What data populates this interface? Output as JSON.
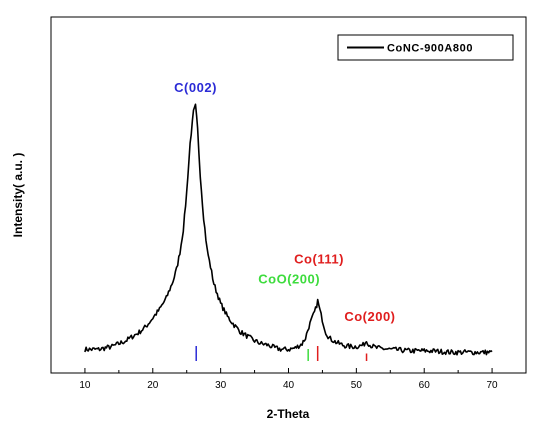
{
  "chart_data": {
    "type": "line",
    "title": "",
    "xlabel": "2-Theta",
    "ylabel": "Intensity( a.u. )",
    "xlim": [
      5,
      75
    ],
    "ylim": [
      0,
      1
    ],
    "y_ticks_shown": false,
    "x_ticks": [
      10,
      20,
      30,
      40,
      50,
      60,
      70
    ],
    "grid": false,
    "legend": {
      "position": "top-right",
      "entries": [
        {
          "label": "CoNC-900A800",
          "color": "#000000"
        }
      ]
    },
    "series": [
      {
        "name": "CoNC-900A800",
        "color": "#000000",
        "x": [
          10,
          12,
          14,
          16,
          18,
          19,
          20,
          21,
          22,
          23,
          23.5,
          24,
          24.5,
          25,
          25.5,
          26,
          26.3,
          26.6,
          27,
          27.5,
          28,
          29,
          30,
          31,
          32,
          33,
          34,
          35,
          36,
          37,
          38,
          39,
          40,
          41,
          42,
          42.5,
          43,
          43.5,
          44,
          44.3,
          44.8,
          45.5,
          46,
          47,
          48,
          49,
          50,
          51,
          51.5,
          52,
          53,
          55,
          58,
          61,
          64,
          67,
          70
        ],
        "y": [
          0.03,
          0.03,
          0.04,
          0.06,
          0.09,
          0.11,
          0.14,
          0.17,
          0.21,
          0.27,
          0.31,
          0.37,
          0.45,
          0.58,
          0.75,
          0.86,
          0.88,
          0.8,
          0.64,
          0.49,
          0.38,
          0.26,
          0.19,
          0.145,
          0.115,
          0.09,
          0.075,
          0.06,
          0.05,
          0.045,
          0.035,
          0.03,
          0.03,
          0.035,
          0.05,
          0.07,
          0.11,
          0.14,
          0.17,
          0.2,
          0.15,
          0.09,
          0.07,
          0.055,
          0.045,
          0.04,
          0.04,
          0.045,
          0.06,
          0.045,
          0.035,
          0.03,
          0.025,
          0.025,
          0.02,
          0.02,
          0.02
        ]
      }
    ],
    "annotations": [
      {
        "text": "C(002)",
        "x": 26.3,
        "y": 0.93,
        "color": "#2b2bd6"
      },
      {
        "text": "CoO(200)",
        "x": 40.1,
        "y": 0.26,
        "color": "#3ddc3d"
      },
      {
        "text": "Co(111)",
        "x": 44.5,
        "y": 0.33,
        "color": "#e01e1e"
      },
      {
        "text": "Co(200)",
        "x": 52.0,
        "y": 0.13,
        "color": "#e01e1e"
      }
    ],
    "reference_ticks": [
      {
        "x": 26.4,
        "color": "#2b2bd6",
        "height": 0.05
      },
      {
        "x": 42.9,
        "color": "#3ddc3d",
        "height": 0.04
      },
      {
        "x": 44.3,
        "color": "#e01e1e",
        "height": 0.05
      },
      {
        "x": 51.5,
        "color": "#e01e1e",
        "height": 0.025
      }
    ]
  }
}
